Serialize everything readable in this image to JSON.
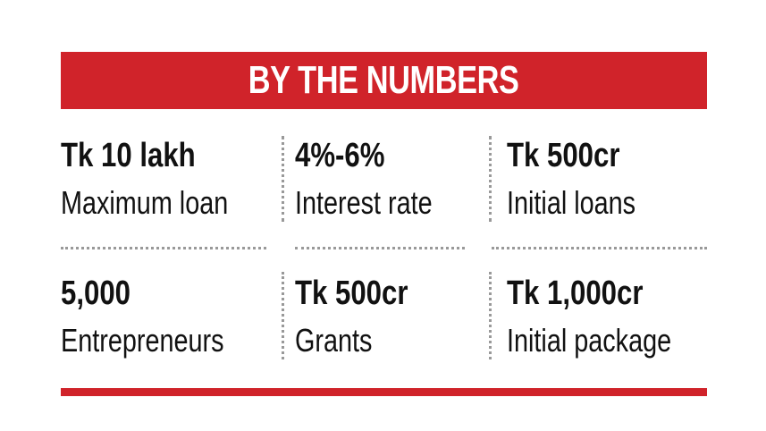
{
  "header": {
    "title": "BY THE NUMBERS"
  },
  "items": [
    {
      "value": "Tk 10 lakh",
      "label": "Maximum loan"
    },
    {
      "value": "4%-6%",
      "label": "Interest rate"
    },
    {
      "value": "Tk 500cr",
      "label": "Initial loans"
    },
    {
      "value": "5,000",
      "label": "Entrepreneurs"
    },
    {
      "value": "Tk 500cr",
      "label": "Grants"
    },
    {
      "value": "Tk 1,000cr",
      "label": "Initial package"
    }
  ]
}
